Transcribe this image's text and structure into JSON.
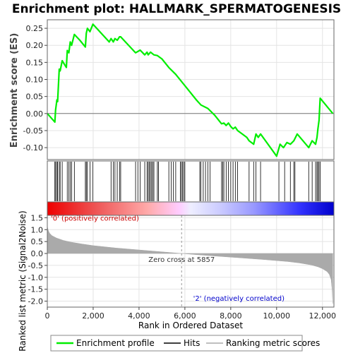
{
  "chart_data": {
    "type": "line",
    "title": "Enrichment plot: HALLMARK_SPERMATOGENESIS",
    "xlabel": "Rank in Ordered Dataset",
    "xlim": [
      0,
      12500
    ],
    "x_ticks": [
      0,
      2000,
      4000,
      6000,
      8000,
      10000,
      12000
    ],
    "x_tick_labels": [
      "0",
      "2,000",
      "4,000",
      "6,000",
      "8,000",
      "10,000",
      "12,000"
    ],
    "es_panel": {
      "ylabel": "Enrichment score (ES)",
      "ylim": [
        -0.135,
        0.275
      ],
      "y_ticks": [
        -0.1,
        -0.05,
        0.0,
        0.05,
        0.1,
        0.15,
        0.2,
        0.25
      ],
      "y_tick_labels": [
        "-0.10",
        "-0.05",
        "0.00",
        "0.05",
        "0.10",
        "0.15",
        "0.20",
        "0.25"
      ],
      "grid": true,
      "series": [
        {
          "name": "Enrichment profile",
          "color": "#00ee00",
          "x": [
            0,
            330,
            360,
            420,
            450,
            520,
            560,
            650,
            830,
            870,
            940,
            1000,
            1060,
            1180,
            1420,
            1660,
            1700,
            1750,
            1860,
            1990,
            2700,
            2780,
            2880,
            2950,
            3050,
            3150,
            3200,
            3850,
            4050,
            4250,
            4350,
            4400,
            4500,
            4650,
            4800,
            5000,
            5300,
            5600,
            5900,
            6200,
            6500,
            6700,
            7000,
            7300,
            7600,
            7700,
            7800,
            7900,
            8000,
            8100,
            8200,
            8300,
            8500,
            8700,
            8800,
            9000,
            9100,
            9200,
            9300,
            10000,
            10150,
            10300,
            10450,
            10600,
            10750,
            10900,
            11400,
            11550,
            11700,
            11760,
            11800,
            11850,
            11900,
            12450
          ],
          "y": [
            0.0,
            -0.025,
            0.01,
            0.04,
            0.035,
            0.13,
            0.125,
            0.155,
            0.135,
            0.185,
            0.178,
            0.21,
            0.2,
            0.232,
            0.215,
            0.195,
            0.235,
            0.25,
            0.24,
            0.262,
            0.21,
            0.22,
            0.21,
            0.22,
            0.215,
            0.225,
            0.225,
            0.178,
            0.186,
            0.172,
            0.18,
            0.172,
            0.18,
            0.172,
            0.17,
            0.16,
            0.135,
            0.115,
            0.09,
            0.065,
            0.04,
            0.025,
            0.015,
            -0.005,
            -0.03,
            -0.028,
            -0.035,
            -0.028,
            -0.038,
            -0.045,
            -0.04,
            -0.05,
            -0.06,
            -0.07,
            -0.08,
            -0.09,
            -0.06,
            -0.07,
            -0.06,
            -0.125,
            -0.09,
            -0.1,
            -0.085,
            -0.09,
            -0.08,
            -0.06,
            -0.1,
            -0.08,
            -0.09,
            -0.07,
            -0.045,
            -0.02,
            0.045,
            0.0
          ]
        }
      ],
      "zero_line": true
    },
    "hits_panel": {
      "legend_name": "Hits",
      "hit_positions": [
        330,
        360,
        420,
        450,
        520,
        560,
        650,
        870,
        940,
        1000,
        1060,
        1180,
        1660,
        1700,
        1750,
        1860,
        1990,
        2780,
        2880,
        2950,
        3050,
        3150,
        3200,
        3850,
        3950,
        4050,
        4250,
        4350,
        4400,
        4450,
        4500,
        4550,
        4600,
        4650,
        4800,
        4850,
        5300,
        5400,
        5500,
        5600,
        5800,
        5850,
        5900,
        5950,
        6000,
        6650,
        6700,
        6800,
        6900,
        7000,
        7100,
        7600,
        7650,
        7700,
        7800,
        7900,
        8000,
        8100,
        8200,
        8300,
        8800,
        9000,
        9100,
        9300,
        10100,
        10350,
        10600,
        10750,
        10800,
        11400,
        11550,
        11700,
        11760,
        11800,
        11850,
        11900
      ]
    },
    "rank_band": {
      "gradient_stops": [
        {
          "pos": 0.0,
          "color": "#ee0000"
        },
        {
          "pos": 0.17,
          "color": "#ee5555"
        },
        {
          "pos": 0.35,
          "color": "#ffaaaa"
        },
        {
          "pos": 0.46,
          "color": "#ffccff"
        },
        {
          "pos": 0.5,
          "color": "#eeeeff"
        },
        {
          "pos": 0.6,
          "color": "#ccccff"
        },
        {
          "pos": 0.72,
          "color": "#9999ff"
        },
        {
          "pos": 0.88,
          "color": "#3333ff"
        },
        {
          "pos": 1.0,
          "color": "#0000cc"
        }
      ]
    },
    "metric_panel": {
      "ylabel": "Ranked list metric (Signal2Noise)",
      "ylim": [
        -2.25,
        1.6
      ],
      "y_ticks": [
        -2.0,
        -1.5,
        -1.0,
        -0.5,
        0.0,
        0.5,
        1.0,
        1.5
      ],
      "y_tick_labels": [
        "-2.0",
        "-1.5",
        "-1.0",
        "-0.5",
        "0.0",
        "0.5",
        "1.0",
        "1.5"
      ],
      "grid": true,
      "fill_color": "#aaaaaa",
      "x": [
        0,
        10,
        50,
        100,
        200,
        400,
        700,
        1000,
        1500,
        2000,
        3000,
        4000,
        5000,
        5857,
        6500,
        7500,
        8500,
        9500,
        10500,
        11000,
        11500,
        11800,
        12000,
        12200,
        12300,
        12380,
        12420,
        12450
      ],
      "y": [
        1.5,
        1.1,
        0.95,
        0.85,
        0.75,
        0.65,
        0.55,
        0.48,
        0.4,
        0.33,
        0.23,
        0.15,
        0.07,
        0.0,
        -0.05,
        -0.12,
        -0.19,
        -0.26,
        -0.34,
        -0.4,
        -0.48,
        -0.56,
        -0.64,
        -0.76,
        -0.88,
        -1.1,
        -1.5,
        -2.1
      ],
      "zero_cross_x": 5857,
      "zero_cross_label": "Zero cross at 5857",
      "pos_label": "'0' (positively correlated)",
      "pos_label_color": "#cc0000",
      "neg_label": "'2' (negatively correlated)",
      "neg_label_color": "#0000cc"
    },
    "legend": {
      "placement": "bottom",
      "entries": [
        {
          "label": "Enrichment profile",
          "color": "#00ee00",
          "kind": "line"
        },
        {
          "label": "Hits",
          "color": "#000000",
          "kind": "line"
        },
        {
          "label": "Ranking metric scores",
          "color": "#aaaaaa",
          "kind": "line"
        }
      ]
    }
  }
}
